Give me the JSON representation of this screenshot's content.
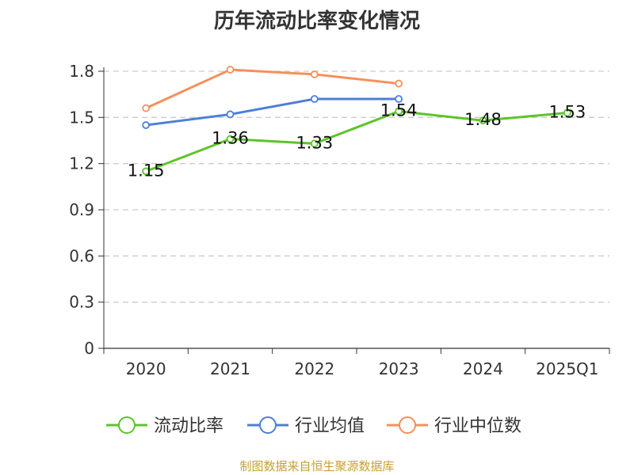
{
  "chart_data": {
    "type": "line",
    "title": "历年流动比率变化情况",
    "categories": [
      "2020",
      "2021",
      "2022",
      "2023",
      "2024",
      "2025Q1"
    ],
    "ylim": [
      0,
      1.8
    ],
    "yticks": [
      "0",
      "0.3",
      "0.6",
      "0.9",
      "1.2",
      "1.5",
      "1.8"
    ],
    "grid": true,
    "legend_position": "bottom",
    "series": [
      {
        "name": "流动比率",
        "color": "#5cc42a",
        "values": [
          1.15,
          1.36,
          1.33,
          1.54,
          1.48,
          1.53
        ],
        "labels": [
          "1.15",
          "1.36",
          "1.33",
          "1.54",
          "1.48",
          "1.53"
        ]
      },
      {
        "name": "行业均值",
        "color": "#4c7fd8",
        "values": [
          1.45,
          1.52,
          1.62,
          1.62,
          null,
          null
        ]
      },
      {
        "name": "行业中位数",
        "color": "#f5905a",
        "values": [
          1.56,
          1.81,
          1.78,
          1.72,
          null,
          null
        ]
      }
    ]
  },
  "footer": {
    "source": "制图数据来自恒生聚源数据库"
  }
}
